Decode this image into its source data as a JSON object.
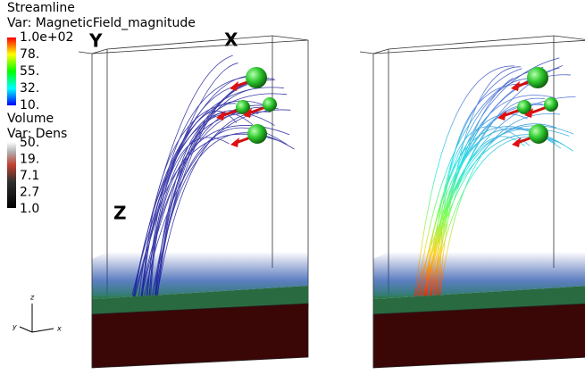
{
  "streamline_legend": {
    "title": "Streamline",
    "variable": "Var: MagneticField_magnitude",
    "labels": [
      "1.0e+02",
      "78.",
      "55.",
      "32.",
      "10."
    ]
  },
  "volume_legend": {
    "title": "Volume",
    "variable": "Var: Dens",
    "labels": [
      "50.",
      "19.",
      "7.1",
      "2.7",
      "1.0"
    ]
  },
  "axis_labels": {
    "y": "Y",
    "x": "X",
    "z": "Z"
  },
  "triad": {
    "z": "z",
    "y": "y",
    "x": "x"
  }
}
